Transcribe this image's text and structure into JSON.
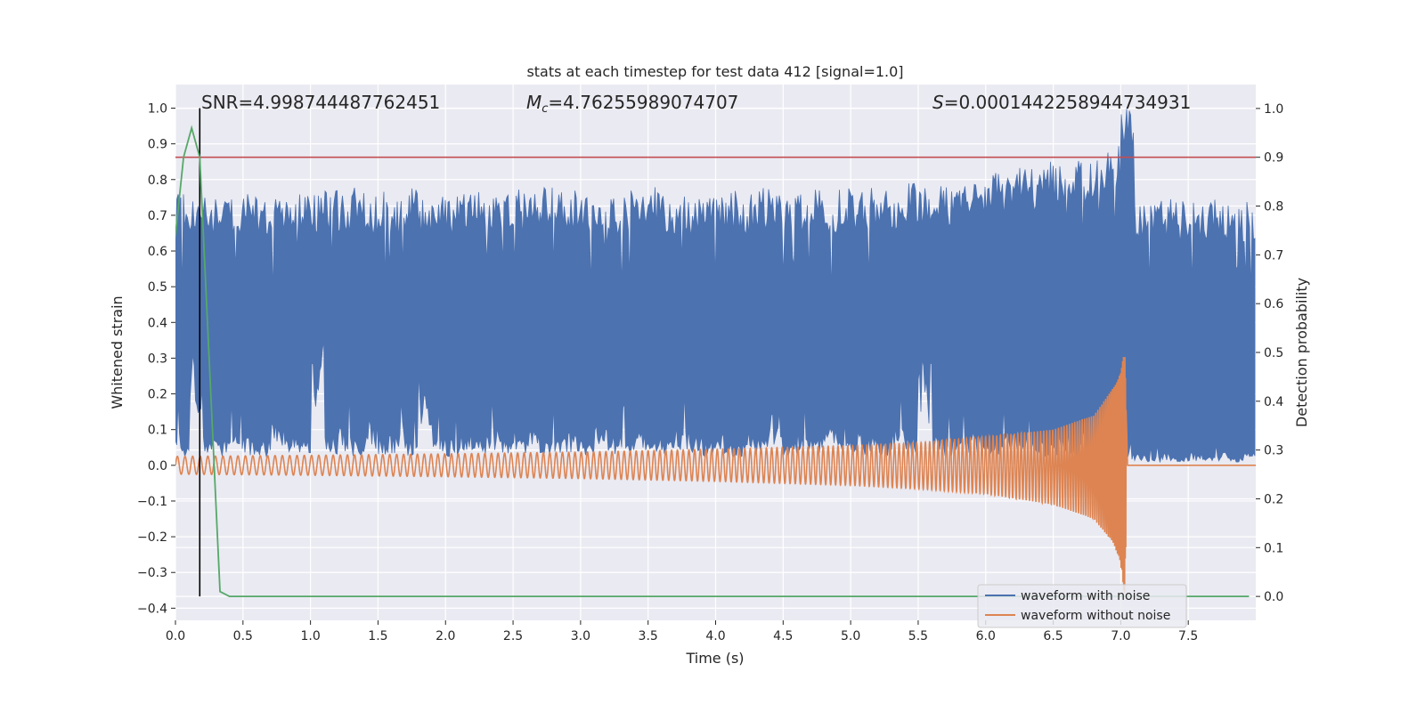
{
  "chart_data": {
    "type": "line",
    "title": "stats at each timestep for test data 412 [signal=1.0]",
    "xlabel": "Time (s)",
    "ylabel": "Whitened strain",
    "ylabel_right": "Detection probability",
    "xlim": [
      0,
      8.0
    ],
    "ylim": [
      -0.434,
      1.066
    ],
    "ylim_right": [
      -0.049,
      1.049
    ],
    "grid": true,
    "xticks": [
      "0.0",
      "0.5",
      "1.0",
      "1.5",
      "2.0",
      "2.5",
      "3.0",
      "3.5",
      "4.0",
      "4.5",
      "5.0",
      "5.5",
      "6.0",
      "6.5",
      "7.0",
      "7.5"
    ],
    "yticks": [
      "1.0",
      "0.9",
      "0.8",
      "0.7",
      "0.6",
      "0.5",
      "0.4",
      "0.3",
      "0.2",
      "0.1",
      "0.0",
      "−0.1",
      "−0.2",
      "−0.3",
      "−0.4"
    ],
    "yticks_right": [
      "1.0",
      "0.9",
      "0.8",
      "0.7",
      "0.6",
      "0.5",
      "0.4",
      "0.3",
      "0.2",
      "0.1",
      "0.0"
    ],
    "annotations": {
      "snr": "SNR=4.998744487762451",
      "mc_symbol": "M",
      "mc_sub": "c",
      "mc_value": "=4.76255989074707",
      "s_symbol": "S",
      "s_value": "=0.0001442258944734931"
    },
    "legend": {
      "placement": "lower-right",
      "entries": [
        "waveform with noise",
        "waveform without noise"
      ]
    },
    "colors": {
      "noise": "#4c72b0",
      "clean": "#dd8452",
      "probability": "#55a868",
      "threshold": "#c44e52",
      "marker": "#000000",
      "background": "#eaeaf2"
    },
    "series": [
      {
        "name": "waveform with noise",
        "axis": "left",
        "bin_width_s": 0.1,
        "upper_envelope": [
          0.77,
          0.77,
          0.76,
          0.77,
          0.75,
          0.77,
          0.76,
          0.77,
          0.75,
          0.77,
          0.76,
          0.77,
          0.76,
          0.78,
          0.76,
          0.77,
          0.75,
          0.78,
          0.76,
          0.77,
          0.76,
          0.77,
          0.78,
          0.76,
          0.77,
          0.79,
          0.76,
          0.78,
          0.77,
          0.77,
          0.76,
          0.78,
          0.76,
          0.77,
          0.77,
          0.78,
          0.76,
          0.77,
          0.76,
          0.78,
          0.77,
          0.77,
          0.76,
          0.78,
          0.77,
          0.77,
          0.76,
          0.78,
          0.77,
          0.78,
          0.77,
          0.78,
          0.78,
          0.77,
          0.79,
          0.78,
          0.79,
          0.78,
          0.79,
          0.8,
          0.82,
          0.81,
          0.84,
          0.83,
          0.85,
          0.84,
          0.86,
          0.85,
          0.88,
          0.9,
          1.0,
          0.74,
          0.74,
          0.75,
          0.74,
          0.74,
          0.75,
          0.74,
          0.74,
          0.74
        ],
        "lower_envelope": [
          0.06,
          0.24,
          0.07,
          0.06,
          0.08,
          0.07,
          0.06,
          0.1,
          0.07,
          0.06,
          0.28,
          0.07,
          0.09,
          0.06,
          0.11,
          0.07,
          0.08,
          0.06,
          0.22,
          0.07,
          0.06,
          0.08,
          0.07,
          0.1,
          0.06,
          0.07,
          0.09,
          0.06,
          0.07,
          0.08,
          0.06,
          0.1,
          0.07,
          0.06,
          0.08,
          0.07,
          0.06,
          0.09,
          0.07,
          0.06,
          0.08,
          0.06,
          0.09,
          0.07,
          0.13,
          0.06,
          0.08,
          0.07,
          0.09,
          0.06,
          0.08,
          0.07,
          0.06,
          0.09,
          0.07,
          0.29,
          0.07,
          0.06,
          0.07,
          0.08,
          0.06,
          0.07,
          0.08,
          0.07,
          0.06,
          0.07,
          0.05,
          0.07,
          0.06,
          0.08,
          0.04,
          0.03,
          0.02,
          0.03,
          0.02,
          0.03,
          0.02,
          0.03,
          0.02,
          0.03
        ]
      },
      {
        "name": "waveform without noise",
        "axis": "left",
        "t": [
          0,
          1,
          2,
          3,
          4,
          5,
          5.5,
          6,
          6.5,
          6.8,
          6.95,
          7.0,
          7.03,
          7.045,
          7.05,
          8.0
        ],
        "upper_envelope": [
          0.025,
          0.028,
          0.032,
          0.037,
          0.045,
          0.055,
          0.063,
          0.08,
          0.1,
          0.14,
          0.22,
          0.26,
          0.33,
          0.1,
          0.0,
          0.0
        ],
        "lower_envelope": [
          -0.025,
          -0.028,
          -0.032,
          -0.037,
          -0.045,
          -0.056,
          -0.066,
          -0.08,
          -0.11,
          -0.15,
          -0.22,
          -0.28,
          -0.37,
          -0.1,
          0.0,
          0.0
        ],
        "merger_time_s": 7.04
      },
      {
        "name": "detection probability",
        "axis": "right",
        "x": [
          0.0,
          0.06,
          0.12,
          0.18,
          0.33,
          0.4,
          7.95
        ],
        "y": [
          0.74,
          0.9,
          0.96,
          0.9,
          0.01,
          0.0,
          0.0
        ]
      }
    ],
    "threshold_right": 0.9,
    "marker_time_s": 0.18
  }
}
